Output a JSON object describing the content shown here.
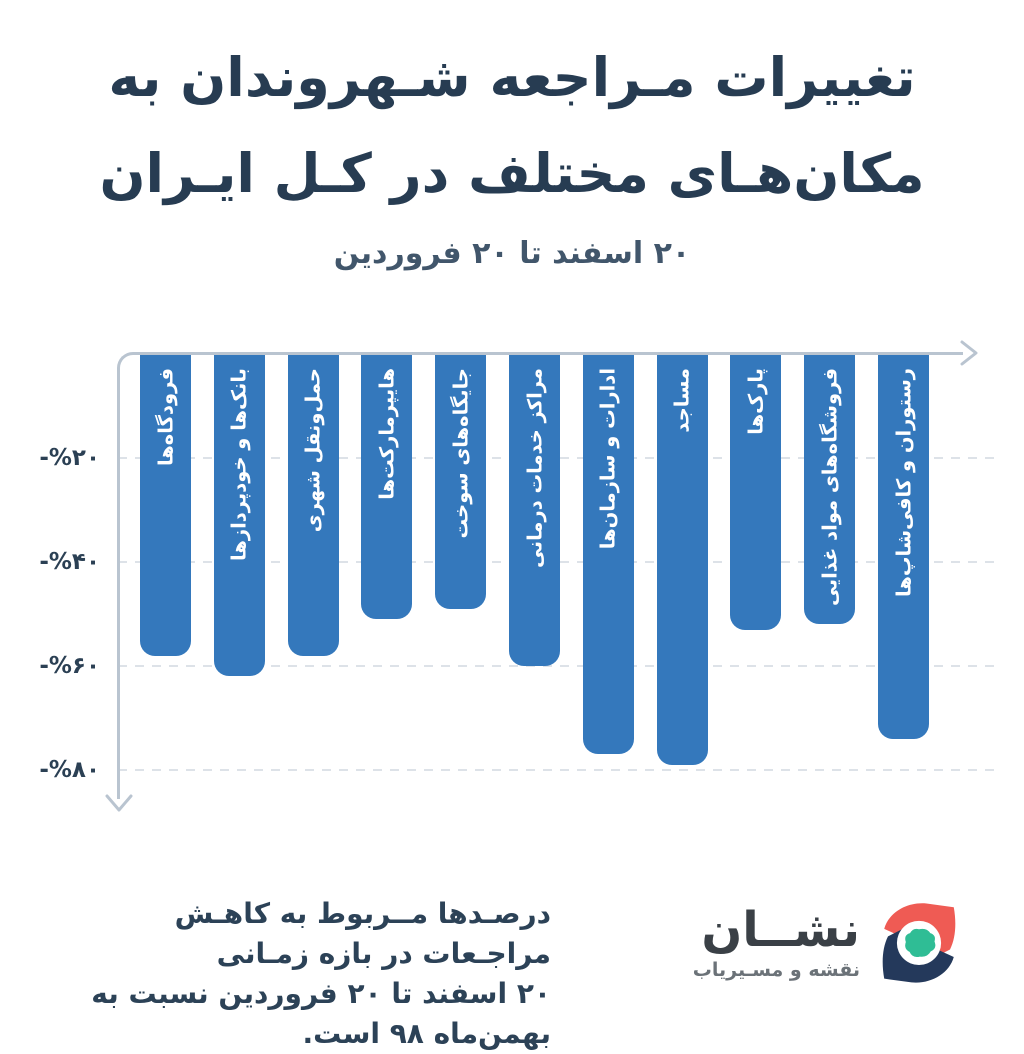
{
  "title": {
    "line1": "تغییرات مـراجعه شـهروندان به",
    "line2": "مکان‌هـای مختلف در کـل ایـران"
  },
  "subtitle": "۲۰ اسفند تا ۲۰ فروردین",
  "chart_data": {
    "type": "bar",
    "orientation": "vertical-downward-negative",
    "visual_order": "left-to-right",
    "categories": [
      "فرودگاه‌ها",
      "بانک‌ها و خودپردازها",
      "حمل‌ونقل شهری",
      "هایپرمارکت‌ها",
      "جایگاه‌های سوخت",
      "مراکز خدمات درمانی",
      "ادارات و سازمان‌ها",
      "مساجد",
      "پارک‌ها",
      "فروشگاه‌های مواد غذایی",
      "رستوران و کافی‌شاپ‌ها"
    ],
    "values": [
      -58,
      -62,
      -58,
      -51,
      -49,
      -60,
      -77,
      -79,
      -53,
      -52,
      -74
    ],
    "unit": "%",
    "y_ticks": [
      {
        "value": -20,
        "label": "-%۲۰"
      },
      {
        "value": -40,
        "label": "-%۴۰"
      },
      {
        "value": -60,
        "label": "-%۶۰"
      },
      {
        "value": -80,
        "label": "-%۸۰"
      }
    ],
    "ylim": [
      0,
      -85
    ],
    "grid": "dashed-horizontal",
    "bar_color": "#3478BC",
    "label_position": "inside-top-rotated",
    "title": "تغییرات مراجعه شهروندان به مکان‌های مختلف در کل ایران",
    "subtitle": "۲۰ اسفند تا ۲۰ فروردین"
  },
  "footer": {
    "line1": "درصـدها مــربوط به کاهـش مراجـعات در بازه زمـانی",
    "line2": "۲۰ اسفند تا ۲۰ فروردین نسبت به بهمن‌ماه ۹۸ است."
  },
  "logo": {
    "name": "نشــان",
    "tagline": "نقشه و مسـیریاب",
    "icon": "neshan-compass-pin-icon"
  },
  "colors": {
    "bar_blue": "#3478BC",
    "title_navy": "#273C52",
    "subtitle_navy": "#41566B",
    "axis_gray": "#B9C4D0",
    "grid_gray": "#DDE2E8",
    "footer_navy": "#2C4257",
    "logo_dark": "#3A4046",
    "logo_gray": "#6B7278",
    "logo_red": "#EF5B54",
    "logo_navy": "#24395B",
    "logo_green": "#2FBD95"
  }
}
